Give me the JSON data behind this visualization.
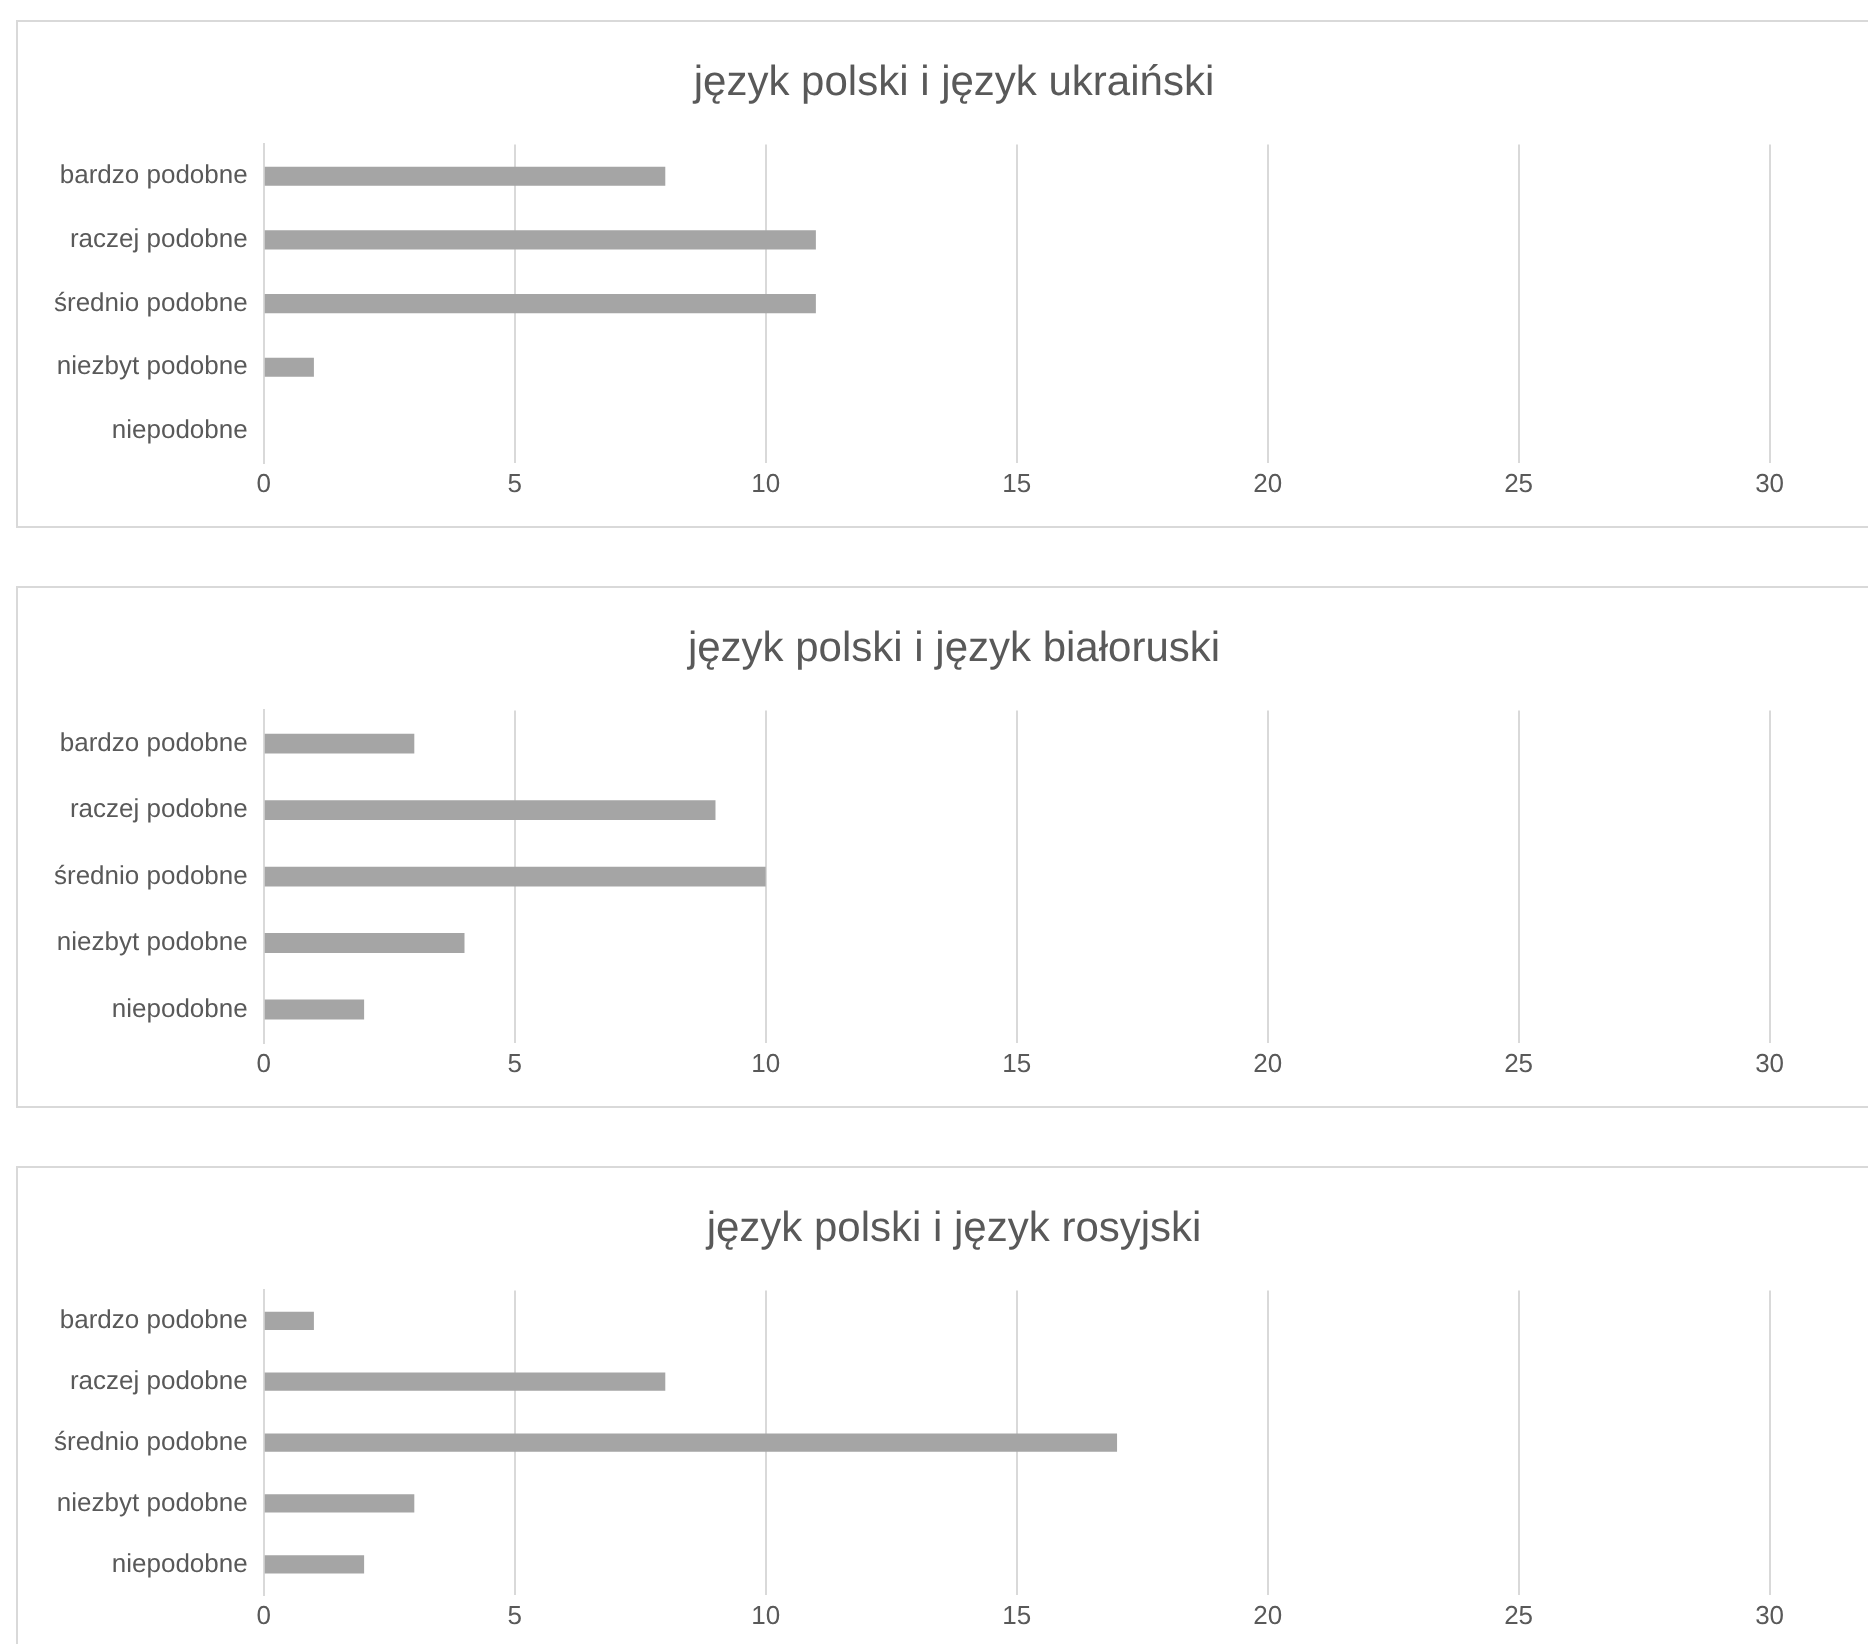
{
  "chart_data": [
    {
      "type": "bar",
      "orientation": "horizontal",
      "title": "język polski i język ukraiński",
      "categories": [
        "bardzo podobne",
        "raczej podobne",
        "średnio podobne",
        "niezbyt podobne",
        "niepodobne"
      ],
      "values": [
        8,
        11,
        11,
        1,
        0
      ],
      "color": "#a5a5a5",
      "xlim": [
        0,
        32
      ],
      "xticks": [
        0,
        5,
        10,
        15,
        20,
        25,
        30
      ],
      "grid": "x",
      "legend": false
    },
    {
      "type": "bar",
      "orientation": "horizontal",
      "title": "język polski i język białoruski",
      "categories": [
        "bardzo podobne",
        "raczej podobne",
        "średnio podobne",
        "niezbyt podobne",
        "niepodobne"
      ],
      "values": [
        3,
        9,
        10,
        4,
        2
      ],
      "color": "#a5a5a5",
      "xlim": [
        0,
        32
      ],
      "xticks": [
        0,
        5,
        10,
        15,
        20,
        25,
        30
      ],
      "grid": "x",
      "legend": false
    },
    {
      "type": "bar",
      "orientation": "horizontal",
      "title": "język polski i język rosyjski",
      "categories": [
        "bardzo podobne",
        "raczej podobne",
        "średnio podobne",
        "niezbyt podobne",
        "niepodobne"
      ],
      "values": [
        1,
        8,
        17,
        3,
        2
      ],
      "color": "#a5a5a5",
      "xlim": [
        0,
        32
      ],
      "xticks": [
        0,
        5,
        10,
        15,
        20,
        25,
        30
      ],
      "grid": "x",
      "legend": false
    }
  ]
}
